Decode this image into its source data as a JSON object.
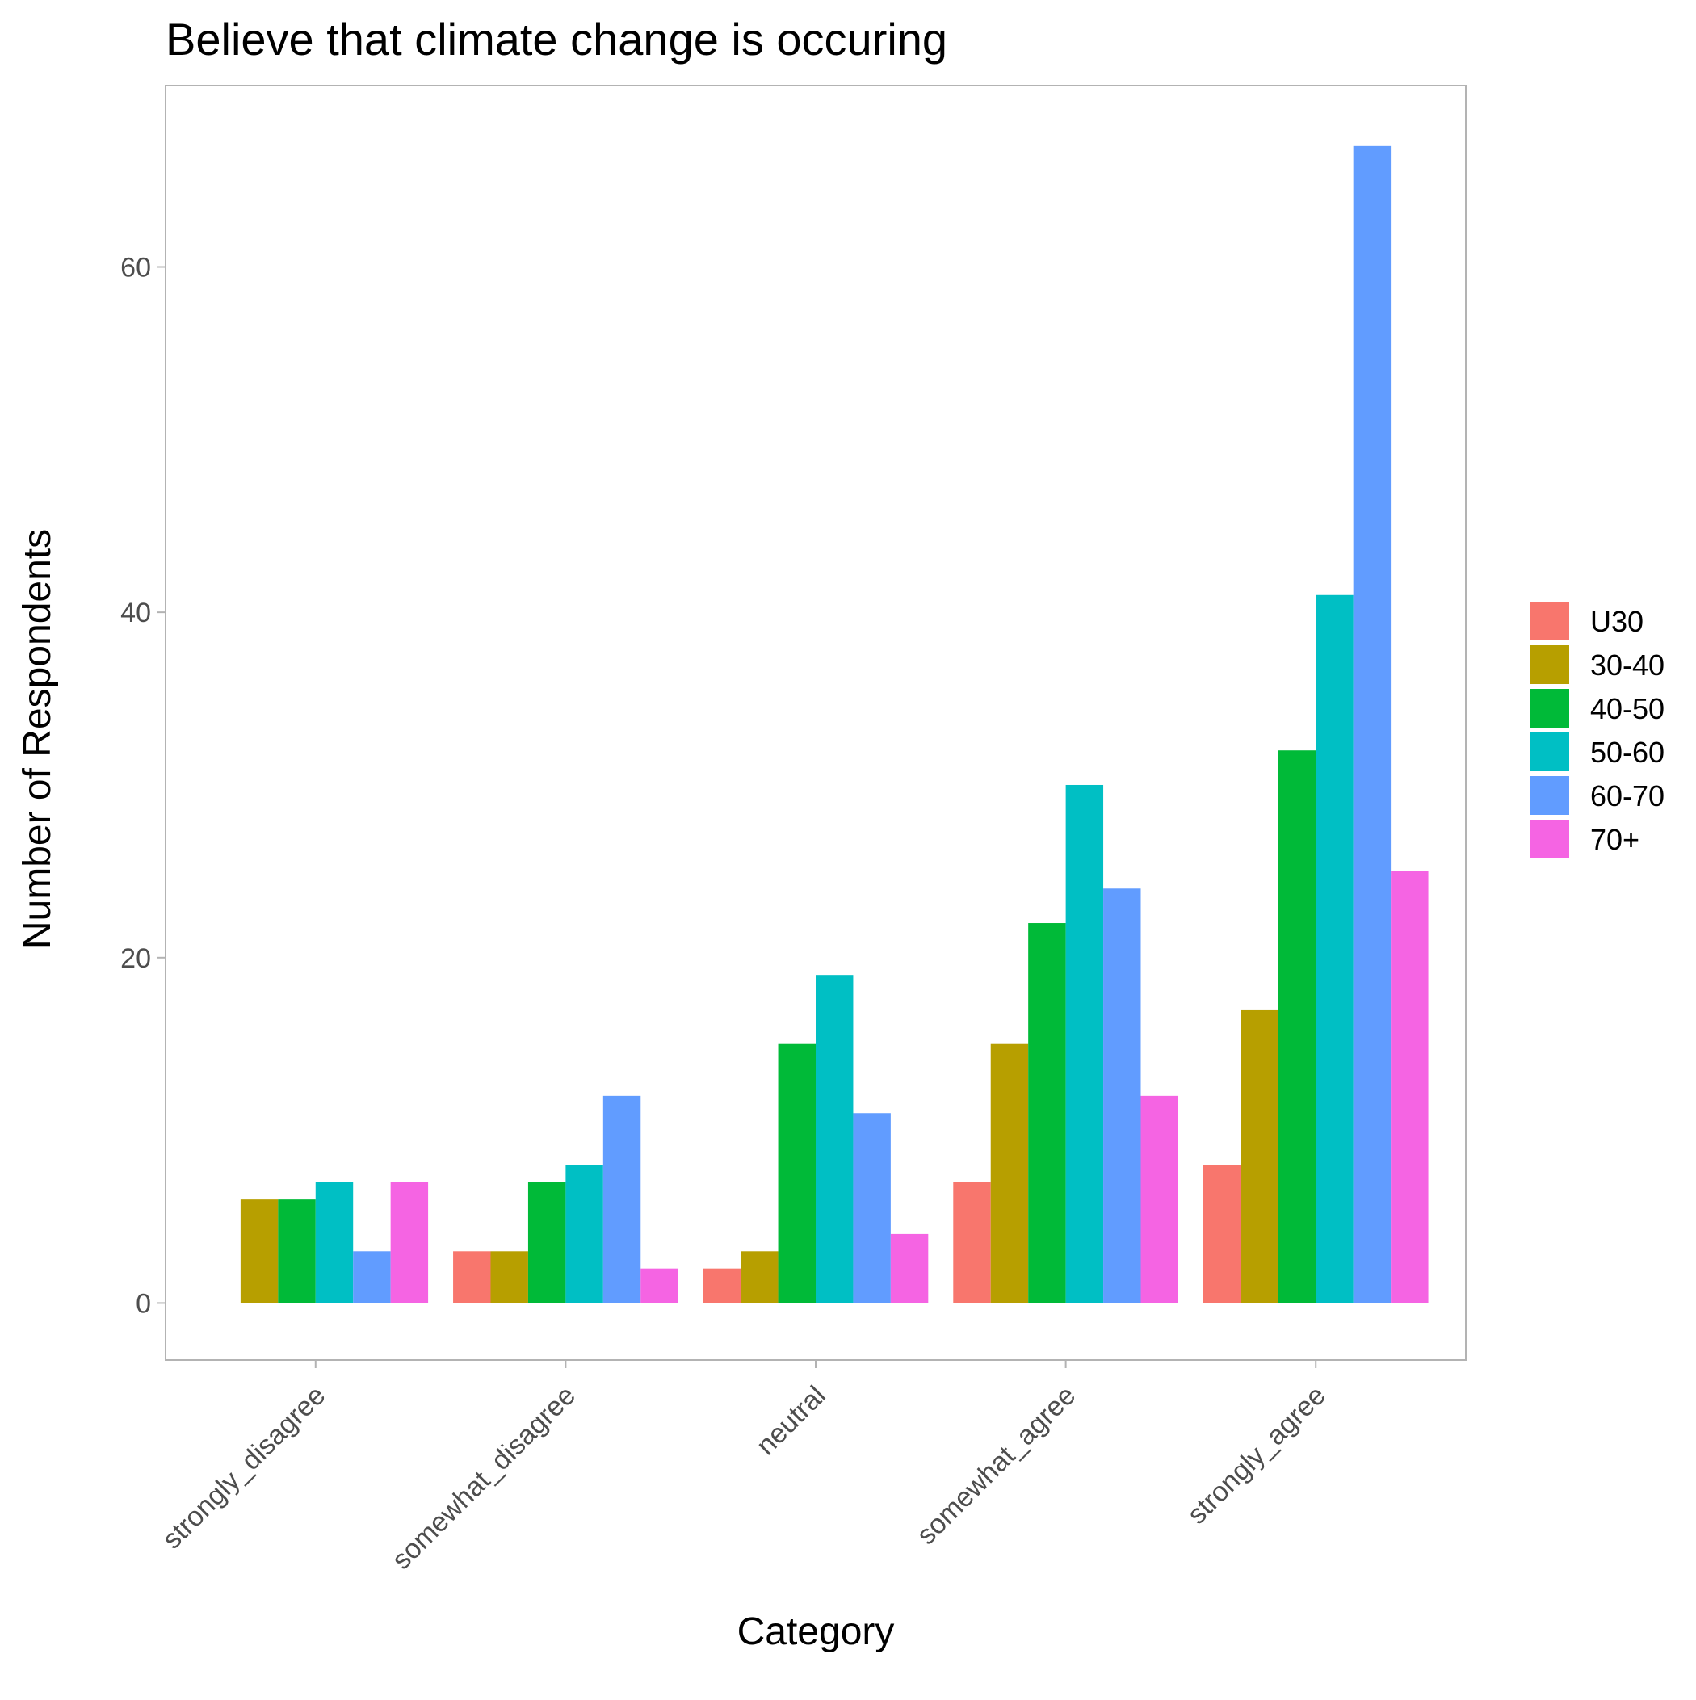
{
  "chart_data": {
    "type": "bar",
    "title": "Believe that climate change is occuring",
    "xlabel": "Category",
    "ylabel": "Number of Respondents",
    "categories": [
      "strongly_disagree",
      "somewhat_disagree",
      "neutral",
      "somewhat_agree",
      "strongly_agree"
    ],
    "series": [
      {
        "name": "U30",
        "color": "#F8766D",
        "values": [
          null,
          3,
          2,
          7,
          8
        ]
      },
      {
        "name": "30-40",
        "color": "#B79F00",
        "values": [
          6,
          3,
          3,
          15,
          17
        ]
      },
      {
        "name": "40-50",
        "color": "#00BA38",
        "values": [
          6,
          7,
          15,
          22,
          32
        ]
      },
      {
        "name": "50-60",
        "color": "#00BFC4",
        "values": [
          7,
          8,
          19,
          30,
          41
        ]
      },
      {
        "name": "60-70",
        "color": "#619CFF",
        "values": [
          3,
          12,
          11,
          24,
          67
        ]
      },
      {
        "name": "70+",
        "color": "#F564E3",
        "values": [
          7,
          2,
          4,
          12,
          25
        ]
      }
    ],
    "yticks": [
      0,
      20,
      40,
      60
    ],
    "ylim": [
      -3.3,
      70.5
    ],
    "grid": false,
    "legend_position": "right",
    "panel_border_color": "#b3b3b3"
  }
}
